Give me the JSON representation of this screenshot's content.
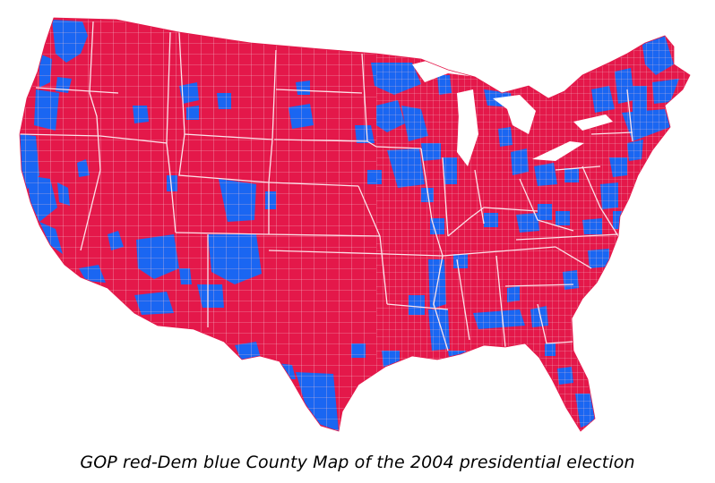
{
  "caption": "GOP red-Dem blue County Map of the 2004 presidential election",
  "colors": {
    "gop_red": "#E4184A",
    "dem_blue": "#1A66F2",
    "county_border": "#F3C7D2",
    "background": "#FFFFFF"
  }
}
